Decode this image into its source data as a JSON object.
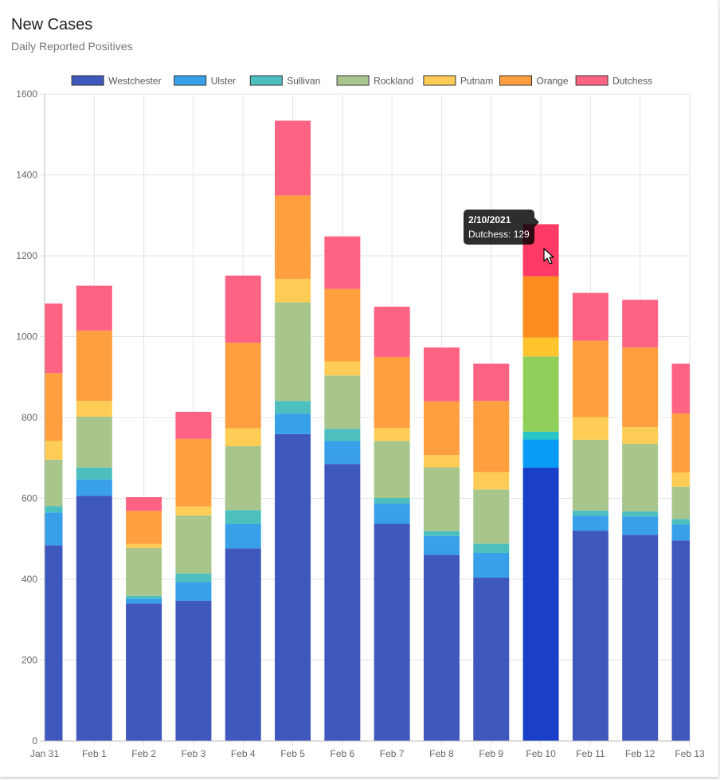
{
  "header": {
    "title": "New Cases",
    "subtitle": "Daily Reported Positives"
  },
  "tooltip": {
    "title": "2/10/2021",
    "series": "Dutchess",
    "value": 129,
    "label": "Dutchess: 129"
  },
  "colors": {
    "Westchester": "#3f58bd",
    "Ulster": "#38a0e8",
    "Sullivan": "#4dbfbf",
    "Rockland": "#a8c68c",
    "Putnam": "#ffcd56",
    "Orange": "#ff9f40",
    "Dutchess": "#ff6384"
  },
  "highlight_colors": {
    "Westchester": "#1a3fc8",
    "Ulster": "#0a9bf5",
    "Sullivan": "#27c5c5",
    "Rockland": "#90ce5a",
    "Putnam": "#ffc42e",
    "Orange": "#ff8c20",
    "Dutchess": "#ff3b65"
  },
  "chart_data": {
    "type": "bar",
    "stacked": true,
    "categories": [
      "Jan 31",
      "Feb 1",
      "Feb 2",
      "Feb 3",
      "Feb 4",
      "Feb 5",
      "Feb 6",
      "Feb 7",
      "Feb 8",
      "Feb 9",
      "Feb 10",
      "Feb 11",
      "Feb 12",
      "Feb 13"
    ],
    "series": [
      {
        "name": "Westchester",
        "values": [
          484,
          606,
          340,
          347,
          476,
          759,
          685,
          537,
          460,
          404,
          676,
          520,
          510,
          496
        ]
      },
      {
        "name": "Ulster",
        "values": [
          81,
          41,
          12,
          46,
          60,
          50,
          57,
          50,
          47,
          61,
          70,
          37,
          45,
          39
        ]
      },
      {
        "name": "Sullivan",
        "values": [
          16,
          29,
          7,
          21,
          35,
          32,
          30,
          14,
          12,
          23,
          19,
          13,
          13,
          14
        ]
      },
      {
        "name": "Rockland",
        "values": [
          115,
          126,
          118,
          144,
          158,
          244,
          132,
          141,
          158,
          134,
          186,
          175,
          167,
          80
        ]
      },
      {
        "name": "Putnam",
        "values": [
          46,
          39,
          10,
          22,
          44,
          58,
          35,
          32,
          30,
          43,
          47,
          56,
          41,
          35
        ]
      },
      {
        "name": "Orange",
        "values": [
          168,
          174,
          82,
          167,
          212,
          206,
          179,
          176,
          133,
          176,
          151,
          189,
          197,
          146
        ]
      },
      {
        "name": "Dutchess",
        "values": [
          172,
          111,
          34,
          67,
          166,
          185,
          130,
          124,
          133,
          92,
          129,
          118,
          118,
          123
        ]
      }
    ],
    "title": "New Cases",
    "subtitle": "Daily Reported Positives",
    "xlabel": "",
    "ylabel": "",
    "ylim": [
      0,
      1600
    ],
    "yticks": [
      0,
      200,
      400,
      600,
      800,
      1000,
      1200,
      1400,
      1600
    ],
    "grid": true,
    "legend": "top",
    "highlighted_category": "Feb 10"
  }
}
